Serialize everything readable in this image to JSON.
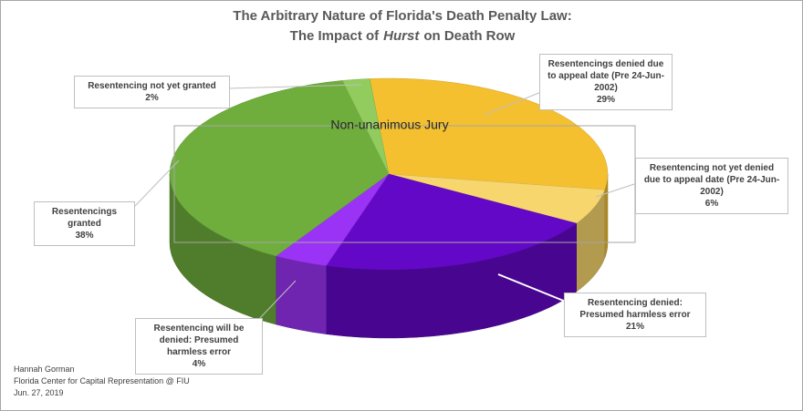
{
  "chart_data": {
    "type": "pie",
    "title": "The Arbitrary Nature of Florida's Death Penalty Law:",
    "subtitle": {
      "before": "The Impact of",
      "emphasis": "Hurst",
      "after": "on Death Row"
    },
    "categories": [
      "Resentencings denied due to appeal date (Pre 24-Jun-2002)",
      "Resentencing not yet denied due to appeal date (Pre 24-Jun-2002)",
      "Resentencing denied: Presumed harmless error",
      "Resentencing will be denied: Presumed harmless error",
      "Resentencings granted",
      "Resentencing not yet granted"
    ],
    "values": [
      29,
      6,
      21,
      4,
      38,
      2
    ],
    "value_labels": [
      "29%",
      "6%",
      "21%",
      "4%",
      "38%",
      "2%"
    ],
    "colors": [
      "#f4c030",
      "#f7d66e",
      "#6408c8",
      "#9a33f5",
      "#6fae3c",
      "#92cc5e"
    ],
    "annotation": "Non-unanimous Jury",
    "credits": [
      "Hannah Gorman",
      "Florida Center for Capital Representation @ FIU",
      "Jun. 27, 2019"
    ]
  }
}
